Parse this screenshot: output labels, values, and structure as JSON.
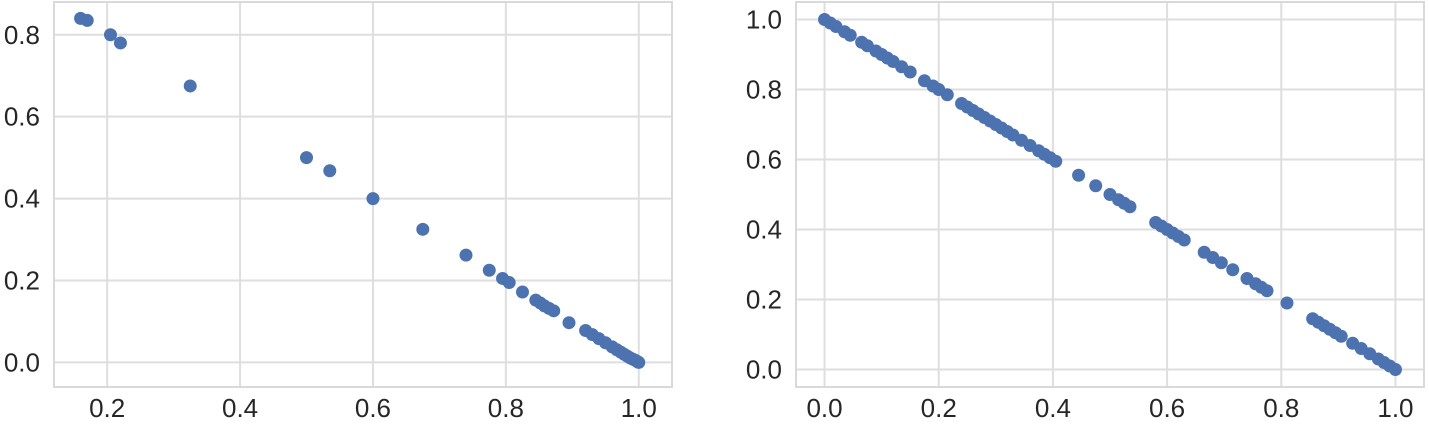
{
  "chart_data": [
    {
      "type": "scatter",
      "title": "",
      "xlabel": "",
      "ylabel": "",
      "xlim": [
        0.12,
        1.05
      ],
      "ylim": [
        -0.06,
        0.88
      ],
      "xticks": [
        "0.2",
        "0.4",
        "0.6",
        "0.8",
        "1.0"
      ],
      "yticks": [
        "0.0",
        "0.2",
        "0.4",
        "0.6",
        "0.8"
      ],
      "grid": true,
      "marker_color": "#4c72b0",
      "series": [
        {
          "x": [
            0.16,
            0.17,
            0.205,
            0.22,
            0.325,
            0.5,
            0.535,
            0.6,
            0.675,
            0.74,
            0.775,
            0.795,
            0.805,
            0.825,
            0.845,
            0.852,
            0.858,
            0.865,
            0.872,
            0.895,
            0.92,
            0.93,
            0.94,
            0.95,
            0.96,
            0.967,
            0.973,
            0.978,
            0.983,
            0.987,
            0.991,
            0.995,
            0.998,
            1.0
          ],
          "y": [
            0.84,
            0.835,
            0.8,
            0.78,
            0.675,
            0.5,
            0.468,
            0.4,
            0.325,
            0.262,
            0.225,
            0.205,
            0.195,
            0.172,
            0.152,
            0.145,
            0.138,
            0.132,
            0.126,
            0.097,
            0.078,
            0.068,
            0.058,
            0.048,
            0.038,
            0.031,
            0.025,
            0.02,
            0.015,
            0.011,
            0.008,
            0.005,
            0.002,
            0.0
          ]
        }
      ]
    },
    {
      "type": "scatter",
      "title": "",
      "xlabel": "",
      "ylabel": "",
      "xlim": [
        -0.05,
        1.05
      ],
      "ylim": [
        -0.05,
        1.05
      ],
      "xticks": [
        "0.0",
        "0.2",
        "0.4",
        "0.6",
        "0.8",
        "1.0"
      ],
      "yticks": [
        "0.0",
        "0.2",
        "0.4",
        "0.6",
        "0.8",
        "1.0"
      ],
      "grid": true,
      "marker_color": "#4c72b0",
      "series": [
        {
          "x": [
            0.0,
            0.01,
            0.02,
            0.035,
            0.045,
            0.065,
            0.075,
            0.09,
            0.1,
            0.11,
            0.12,
            0.135,
            0.15,
            0.175,
            0.19,
            0.2,
            0.215,
            0.24,
            0.25,
            0.26,
            0.27,
            0.28,
            0.29,
            0.3,
            0.31,
            0.32,
            0.33,
            0.345,
            0.36,
            0.375,
            0.385,
            0.395,
            0.405,
            0.445,
            0.475,
            0.5,
            0.515,
            0.525,
            0.535,
            0.58,
            0.59,
            0.6,
            0.61,
            0.62,
            0.63,
            0.665,
            0.68,
            0.695,
            0.715,
            0.74,
            0.755,
            0.765,
            0.775,
            0.81,
            0.855,
            0.865,
            0.875,
            0.885,
            0.895,
            0.905,
            0.925,
            0.94,
            0.955,
            0.97,
            0.98,
            0.99,
            1.0
          ],
          "y": [
            1.0,
            0.99,
            0.98,
            0.965,
            0.955,
            0.935,
            0.925,
            0.91,
            0.9,
            0.89,
            0.88,
            0.865,
            0.85,
            0.825,
            0.81,
            0.8,
            0.785,
            0.76,
            0.75,
            0.74,
            0.73,
            0.72,
            0.71,
            0.7,
            0.69,
            0.68,
            0.67,
            0.655,
            0.64,
            0.625,
            0.615,
            0.605,
            0.595,
            0.555,
            0.525,
            0.5,
            0.485,
            0.475,
            0.465,
            0.42,
            0.41,
            0.4,
            0.39,
            0.38,
            0.37,
            0.335,
            0.32,
            0.305,
            0.285,
            0.26,
            0.245,
            0.235,
            0.225,
            0.19,
            0.145,
            0.135,
            0.125,
            0.115,
            0.105,
            0.095,
            0.075,
            0.06,
            0.045,
            0.03,
            0.02,
            0.01,
            0.0
          ]
        }
      ]
    }
  ]
}
